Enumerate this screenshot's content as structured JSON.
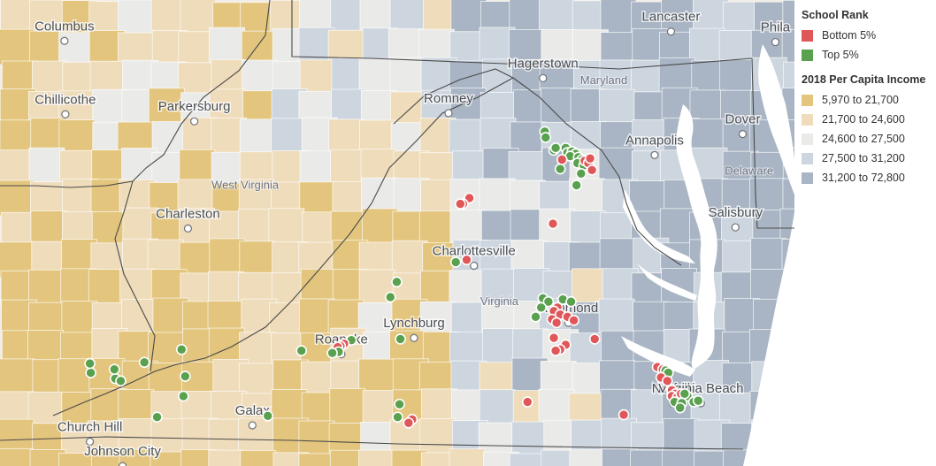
{
  "legend": {
    "school_rank": {
      "title": "School Rank",
      "items": [
        {
          "label": "Bottom 5%",
          "color": "#e05759"
        },
        {
          "label": "Top 5%",
          "color": "#59a14f"
        }
      ]
    },
    "income": {
      "title": "2018 Per Capita Income",
      "items": [
        {
          "label": "5,970 to 21,700",
          "color": "#e3c57e"
        },
        {
          "label": "21,700 to 24,600",
          "color": "#efdcba"
        },
        {
          "label": "24,600 to 27,500",
          "color": "#eaeae8"
        },
        {
          "label": "27,500 to 31,200",
          "color": "#cdd5df"
        },
        {
          "label": "31,200 to 72,800",
          "color": "#a9b5c4"
        }
      ]
    }
  },
  "map": {
    "cities": [
      {
        "name": "Columbus",
        "lon": -82.99,
        "lat": 39.96
      },
      {
        "name": "Lancaster",
        "lon": -76.31,
        "lat": 40.04
      },
      {
        "name": "Hagerstown",
        "lon": -77.72,
        "lat": 39.64
      },
      {
        "name": "Chillicothe",
        "lon": -82.98,
        "lat": 39.33
      },
      {
        "name": "Parkersburg",
        "lon": -81.56,
        "lat": 39.27
      },
      {
        "name": "Romney",
        "lon": -78.76,
        "lat": 39.34
      },
      {
        "name": "Annapolis",
        "lon": -76.49,
        "lat": 38.98
      },
      {
        "name": "Dover",
        "lon": -75.52,
        "lat": 39.16
      },
      {
        "name": "Charleston",
        "lon": -81.63,
        "lat": 38.35
      },
      {
        "name": "Salisbury",
        "lon": -75.6,
        "lat": 38.36
      },
      {
        "name": "Charlottesville",
        "lon": -78.48,
        "lat": 38.03
      },
      {
        "name": "Richmond",
        "lon": -77.44,
        "lat": 37.54
      },
      {
        "name": "Roanoke",
        "lon": -79.94,
        "lat": 37.27
      },
      {
        "name": "Lynchburg",
        "lon": -79.14,
        "lat": 37.41
      },
      {
        "name": "Norfolk",
        "lon": -76.29,
        "lat": 36.85
      },
      {
        "name": "Virginia Beach",
        "lon": -75.98,
        "lat": 36.85
      },
      {
        "name": "Galax",
        "lon": -80.92,
        "lat": 36.66
      },
      {
        "name": "Church Hill",
        "lon": -82.71,
        "lat": 36.52
      },
      {
        "name": "Johnson City",
        "lon": -82.35,
        "lat": 36.31
      },
      {
        "name": "Phila",
        "lon": -75.16,
        "lat": 39.95
      }
    ],
    "states": [
      {
        "name": "Maryland",
        "lon": -77.05,
        "lat": 39.5
      },
      {
        "name": "West Virginia",
        "lon": -81.0,
        "lat": 38.6
      },
      {
        "name": "Virginia",
        "lon": -78.2,
        "lat": 37.6
      },
      {
        "name": "Delaware",
        "lon": -75.45,
        "lat": 38.72
      }
    ]
  },
  "schools": [
    {
      "rank": "Top 5%",
      "lon": -77.7,
      "lat": 39.09
    },
    {
      "rank": "Top 5%",
      "lon": -77.69,
      "lat": 39.04
    },
    {
      "rank": "Top 5%",
      "lon": -77.6,
      "lat": 38.93
    },
    {
      "rank": "Top 5%",
      "lon": -77.58,
      "lat": 38.95
    },
    {
      "rank": "Top 5%",
      "lon": -77.47,
      "lat": 38.95
    },
    {
      "rank": "Top 5%",
      "lon": -77.45,
      "lat": 38.91
    },
    {
      "rank": "Top 5%",
      "lon": -77.4,
      "lat": 38.92
    },
    {
      "rank": "Top 5%",
      "lon": -77.36,
      "lat": 38.9
    },
    {
      "rank": "Top 5%",
      "lon": -77.42,
      "lat": 38.88
    },
    {
      "rank": "Top 5%",
      "lon": -77.33,
      "lat": 38.87
    },
    {
      "rank": "Top 5%",
      "lon": -77.29,
      "lat": 38.85
    },
    {
      "rank": "Top 5%",
      "lon": -77.34,
      "lat": 38.82
    },
    {
      "rank": "Top 5%",
      "lon": -77.27,
      "lat": 38.8
    },
    {
      "rank": "Top 5%",
      "lon": -77.53,
      "lat": 38.77
    },
    {
      "rank": "Top 5%",
      "lon": -77.3,
      "lat": 38.73
    },
    {
      "rank": "Top 5%",
      "lon": -77.35,
      "lat": 38.63
    },
    {
      "rank": "Bottom 5%",
      "lon": -77.51,
      "lat": 38.85
    },
    {
      "rank": "Bottom 5%",
      "lon": -77.26,
      "lat": 38.84
    },
    {
      "rank": "Bottom 5%",
      "lon": -77.22,
      "lat": 38.82
    },
    {
      "rank": "Bottom 5%",
      "lon": -77.2,
      "lat": 38.86
    },
    {
      "rank": "Bottom 5%",
      "lon": -77.18,
      "lat": 38.76
    },
    {
      "rank": "Bottom 5%",
      "lon": -78.53,
      "lat": 38.52
    },
    {
      "rank": "Bottom 5%",
      "lon": -78.6,
      "lat": 38.47
    },
    {
      "rank": "Bottom 5%",
      "lon": -78.63,
      "lat": 38.47
    },
    {
      "rank": "Bottom 5%",
      "lon": -77.61,
      "lat": 38.3
    },
    {
      "rank": "Top 5%",
      "lon": -78.68,
      "lat": 37.97
    },
    {
      "rank": "Bottom 5%",
      "lon": -78.56,
      "lat": 37.99
    },
    {
      "rank": "Top 5%",
      "lon": -79.33,
      "lat": 37.8
    },
    {
      "rank": "Top 5%",
      "lon": -79.4,
      "lat": 37.67
    },
    {
      "rank": "Top 5%",
      "lon": -77.72,
      "lat": 37.66
    },
    {
      "rank": "Top 5%",
      "lon": -77.66,
      "lat": 37.63
    },
    {
      "rank": "Top 5%",
      "lon": -77.5,
      "lat": 37.65
    },
    {
      "rank": "Top 5%",
      "lon": -77.41,
      "lat": 37.63
    },
    {
      "rank": "Top 5%",
      "lon": -77.74,
      "lat": 37.58
    },
    {
      "rank": "Top 5%",
      "lon": -77.8,
      "lat": 37.5
    },
    {
      "rank": "Bottom 5%",
      "lon": -77.56,
      "lat": 37.58
    },
    {
      "rank": "Bottom 5%",
      "lon": -77.6,
      "lat": 37.55
    },
    {
      "rank": "Bottom 5%",
      "lon": -77.53,
      "lat": 37.52
    },
    {
      "rank": "Bottom 5%",
      "lon": -77.62,
      "lat": 37.48
    },
    {
      "rank": "Bottom 5%",
      "lon": -77.45,
      "lat": 37.5
    },
    {
      "rank": "Bottom 5%",
      "lon": -77.38,
      "lat": 37.47
    },
    {
      "rank": "Bottom 5%",
      "lon": -77.57,
      "lat": 37.45
    },
    {
      "rank": "Bottom 5%",
      "lon": -77.6,
      "lat": 37.32
    },
    {
      "rank": "Bottom 5%",
      "lon": -77.47,
      "lat": 37.26
    },
    {
      "rank": "Bottom 5%",
      "lon": -77.53,
      "lat": 37.22
    },
    {
      "rank": "Bottom 5%",
      "lon": -77.58,
      "lat": 37.21
    },
    {
      "rank": "Bottom 5%",
      "lon": -77.15,
      "lat": 37.31
    },
    {
      "rank": "Top 5%",
      "lon": -79.83,
      "lat": 37.3
    },
    {
      "rank": "Bottom 5%",
      "lon": -79.91,
      "lat": 37.27
    },
    {
      "rank": "Bottom 5%",
      "lon": -79.95,
      "lat": 37.25
    },
    {
      "rank": "Bottom 5%",
      "lon": -79.98,
      "lat": 37.24
    },
    {
      "rank": "Top 5%",
      "lon": -79.97,
      "lat": 37.2
    },
    {
      "rank": "Top 5%",
      "lon": -80.04,
      "lat": 37.19
    },
    {
      "rank": "Top 5%",
      "lon": -80.38,
      "lat": 37.21
    },
    {
      "rank": "Top 5%",
      "lon": -79.29,
      "lat": 37.31
    },
    {
      "rank": "Top 5%",
      "lon": -81.7,
      "lat": 37.22
    },
    {
      "rank": "Top 5%",
      "lon": -82.11,
      "lat": 37.11
    },
    {
      "rank": "Top 5%",
      "lon": -82.43,
      "lat": 36.97
    },
    {
      "rank": "Top 5%",
      "lon": -82.44,
      "lat": 37.05
    },
    {
      "rank": "Top 5%",
      "lon": -82.7,
      "lat": 37.02
    },
    {
      "rank": "Top 5%",
      "lon": -82.71,
      "lat": 37.1
    },
    {
      "rank": "Top 5%",
      "lon": -82.37,
      "lat": 36.95
    },
    {
      "rank": "Top 5%",
      "lon": -81.66,
      "lat": 36.99
    },
    {
      "rank": "Top 5%",
      "lon": -81.97,
      "lat": 36.64
    },
    {
      "rank": "Top 5%",
      "lon": -81.68,
      "lat": 36.82
    },
    {
      "rank": "Top 5%",
      "lon": -80.75,
      "lat": 36.65
    },
    {
      "rank": "Top 5%",
      "lon": -79.3,
      "lat": 36.75
    },
    {
      "rank": "Top 5%",
      "lon": -79.32,
      "lat": 36.64
    },
    {
      "rank": "Bottom 5%",
      "lon": -79.16,
      "lat": 36.62
    },
    {
      "rank": "Bottom 5%",
      "lon": -79.2,
      "lat": 36.59
    },
    {
      "rank": "Bottom 5%",
      "lon": -77.89,
      "lat": 36.77
    },
    {
      "rank": "Bottom 5%",
      "lon": -76.83,
      "lat": 36.66
    },
    {
      "rank": "Bottom 5%",
      "lon": -76.46,
      "lat": 37.07
    },
    {
      "rank": "Bottom 5%",
      "lon": -76.4,
      "lat": 37.05
    },
    {
      "rank": "Top 5%",
      "lon": -76.37,
      "lat": 37.04
    },
    {
      "rank": "Top 5%",
      "lon": -76.34,
      "lat": 37.02
    },
    {
      "rank": "Bottom 5%",
      "lon": -76.42,
      "lat": 36.98
    },
    {
      "rank": "Bottom 5%",
      "lon": -76.35,
      "lat": 36.95
    },
    {
      "rank": "Bottom 5%",
      "lon": -76.3,
      "lat": 36.87
    },
    {
      "rank": "Bottom 5%",
      "lon": -76.26,
      "lat": 36.84
    },
    {
      "rank": "Bottom 5%",
      "lon": -76.3,
      "lat": 36.82
    },
    {
      "rank": "Bottom 5%",
      "lon": -76.24,
      "lat": 36.81
    },
    {
      "rank": "Bottom 5%",
      "lon": -76.2,
      "lat": 36.84
    },
    {
      "rank": "Top 5%",
      "lon": -76.13,
      "lat": 36.82
    },
    {
      "rank": "Top 5%",
      "lon": -76.16,
      "lat": 36.84
    },
    {
      "rank": "Top 5%",
      "lon": -76.27,
      "lat": 36.77
    },
    {
      "rank": "Top 5%",
      "lon": -76.19,
      "lat": 36.76
    },
    {
      "rank": "Top 5%",
      "lon": -76.21,
      "lat": 36.72
    },
    {
      "rank": "Top 5%",
      "lon": -76.06,
      "lat": 36.77
    },
    {
      "rank": "Top 5%",
      "lon": -76.01,
      "lat": 36.78
    }
  ]
}
